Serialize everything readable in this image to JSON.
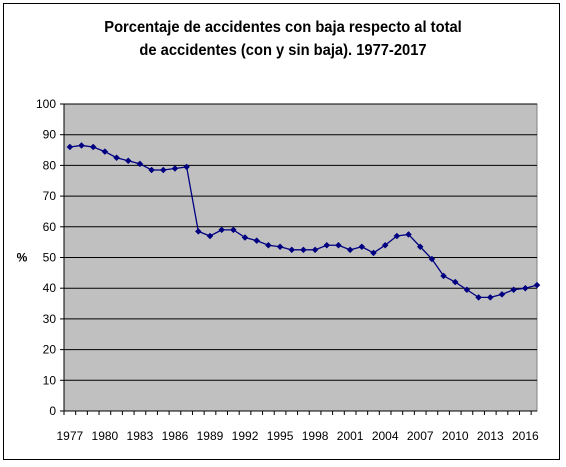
{
  "chart_data": {
    "type": "line",
    "title_lines": [
      "Porcentaje de accidentes con baja respecto al total",
      "de accidentes (con y sin baja). 1977-2017"
    ],
    "xlabel": "",
    "ylabel": "%",
    "ylim": [
      0,
      100
    ],
    "yticks": [
      0,
      10,
      20,
      30,
      40,
      50,
      60,
      70,
      80,
      90,
      100
    ],
    "xticks": [
      1977,
      1980,
      1983,
      1986,
      1989,
      1992,
      1995,
      1998,
      2001,
      2004,
      2007,
      2010,
      2013,
      2016
    ],
    "grid": true,
    "legend": "none",
    "plot_background": "#c0c0c0",
    "line_color": "#000080",
    "series": [
      {
        "x": [
          1977,
          1978,
          1979,
          1980,
          1981,
          1982,
          1983,
          1984,
          1985,
          1986,
          1987,
          1988,
          1989,
          1990,
          1991,
          1992,
          1993,
          1994,
          1995,
          1996,
          1997,
          1998,
          1999,
          2000,
          2001,
          2002,
          2003,
          2004,
          2005,
          2006,
          2007,
          2008,
          2009,
          2010,
          2011,
          2012,
          2013,
          2014,
          2015,
          2016,
          2017
        ],
        "values": [
          86,
          86.5,
          86,
          84.5,
          82.5,
          81.5,
          80.5,
          78.5,
          78.5,
          79,
          79.5,
          58.5,
          57,
          59,
          59,
          56.5,
          55.5,
          54,
          53.5,
          52.5,
          52.5,
          52.5,
          54,
          54,
          52.5,
          53.5,
          51.5,
          54,
          57,
          57.5,
          53.5,
          49.5,
          44,
          42,
          39.5,
          37,
          37,
          38,
          39.5,
          40,
          41
        ]
      }
    ]
  }
}
